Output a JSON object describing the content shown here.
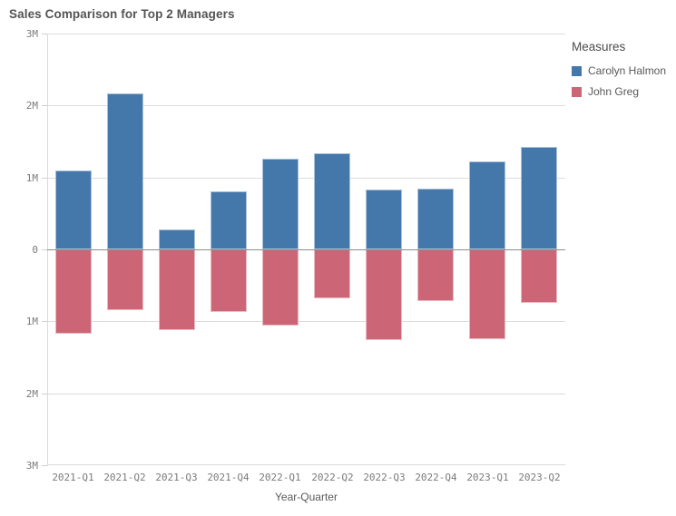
{
  "title": "Sales Comparison for Top 2 Managers",
  "legend": {
    "title": "Measures",
    "items": [
      {
        "label": "Carolyn Halmon",
        "color": "#4477aa"
      },
      {
        "label": "John Greg",
        "color": "#cc6677"
      }
    ]
  },
  "x_axis": {
    "title": "Year-Quarter"
  },
  "y_axis": {
    "tick_labels": [
      "3M",
      "2M",
      "1M",
      "0",
      "1M",
      "2M",
      "3M"
    ],
    "tick_values_millions": [
      3,
      2,
      1,
      0,
      -1,
      -2,
      -3
    ]
  },
  "colors": {
    "carolyn": "#4477aa",
    "john": "#cc6677",
    "gridline": "#dcdcdc",
    "zero_line": "#8c8c8c",
    "title_text": "#545454",
    "tick_text": "#7b7b7b"
  },
  "chart_data": {
    "type": "bar",
    "subtype": "diverging-vertical",
    "title": "Sales Comparison for Top 2 Managers",
    "xlabel": "Year-Quarter",
    "ylabel": "",
    "categories": [
      "2021-Q1",
      "2021-Q2",
      "2021-Q3",
      "2021-Q4",
      "2022-Q1",
      "2022-Q2",
      "2022-Q3",
      "2022-Q4",
      "2023-Q1",
      "2023-Q2"
    ],
    "series": [
      {
        "name": "Carolyn Halmon",
        "color": "#4477aa",
        "direction": "up",
        "unit": "millions",
        "values": [
          1.1,
          2.17,
          0.28,
          0.81,
          1.26,
          1.34,
          0.83,
          0.85,
          1.22,
          1.43
        ]
      },
      {
        "name": "John Greg",
        "color": "#cc6677",
        "direction": "down",
        "unit": "millions",
        "values": [
          1.17,
          0.85,
          1.12,
          0.87,
          1.06,
          0.68,
          1.26,
          0.72,
          1.25,
          0.74
        ]
      }
    ],
    "ylim_millions": [
      -3,
      3
    ],
    "grid": true,
    "legend_position": "right",
    "legend_title": "Measures"
  }
}
